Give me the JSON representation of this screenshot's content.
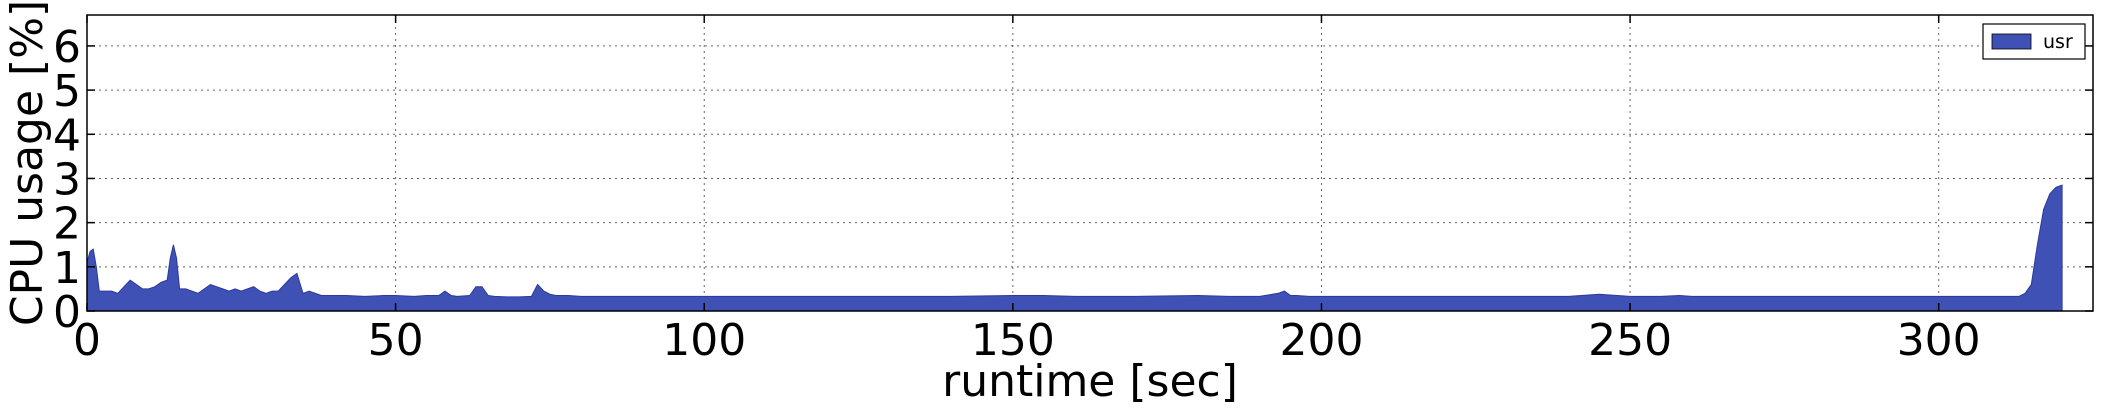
{
  "chart_data": {
    "type": "area",
    "title": "",
    "xlabel": "runtime [sec]",
    "ylabel": "CPU usage [%]",
    "xlim": [
      0,
      325
    ],
    "ylim": [
      0,
      6.7
    ],
    "xticks": [
      0,
      50,
      100,
      150,
      200,
      250,
      300
    ],
    "yticks": [
      0,
      1,
      2,
      3,
      4,
      5,
      6
    ],
    "grid": true,
    "legend_position": "top-right",
    "series": [
      {
        "name": "usr",
        "color": "#3f51b5",
        "x": [
          0,
          0.5,
          1,
          1.5,
          2,
          3,
          4,
          5,
          6,
          7,
          8,
          9,
          10,
          11,
          12,
          13,
          13.5,
          14,
          14.5,
          15,
          16,
          17,
          18,
          19,
          20,
          21,
          22,
          23,
          24,
          25,
          26,
          27,
          28,
          29,
          30,
          31,
          32,
          33,
          34,
          35,
          36,
          37,
          38,
          40,
          42,
          45,
          48,
          50,
          53,
          55,
          57,
          58,
          59,
          60,
          62,
          63,
          64,
          65,
          66,
          68,
          70,
          72,
          73,
          74,
          75,
          76,
          78,
          80,
          85,
          90,
          95,
          100,
          110,
          120,
          130,
          140,
          150,
          155,
          160,
          170,
          180,
          185,
          190,
          193,
          194,
          195,
          196,
          198,
          200,
          210,
          220,
          230,
          240,
          245,
          250,
          255,
          258,
          260,
          270,
          280,
          290,
          300,
          305,
          310,
          313,
          314,
          315,
          316,
          317,
          318,
          319,
          320
        ],
        "values": [
          1.1,
          1.35,
          1.4,
          1.0,
          0.45,
          0.45,
          0.45,
          0.4,
          0.55,
          0.7,
          0.6,
          0.5,
          0.5,
          0.55,
          0.65,
          0.7,
          1.2,
          1.5,
          1.2,
          0.5,
          0.5,
          0.45,
          0.4,
          0.5,
          0.6,
          0.55,
          0.5,
          0.45,
          0.5,
          0.45,
          0.5,
          0.55,
          0.45,
          0.4,
          0.45,
          0.45,
          0.6,
          0.75,
          0.85,
          0.4,
          0.45,
          0.4,
          0.35,
          0.35,
          0.35,
          0.33,
          0.35,
          0.35,
          0.33,
          0.35,
          0.35,
          0.45,
          0.35,
          0.33,
          0.35,
          0.55,
          0.55,
          0.35,
          0.33,
          0.32,
          0.32,
          0.33,
          0.6,
          0.45,
          0.38,
          0.35,
          0.35,
          0.33,
          0.33,
          0.33,
          0.33,
          0.33,
          0.33,
          0.33,
          0.33,
          0.33,
          0.35,
          0.35,
          0.33,
          0.33,
          0.35,
          0.33,
          0.33,
          0.4,
          0.45,
          0.35,
          0.35,
          0.33,
          0.33,
          0.33,
          0.33,
          0.33,
          0.33,
          0.38,
          0.33,
          0.33,
          0.35,
          0.33,
          0.33,
          0.33,
          0.33,
          0.33,
          0.33,
          0.33,
          0.33,
          0.4,
          0.6,
          1.5,
          2.3,
          2.65,
          2.8,
          2.85
        ]
      }
    ]
  }
}
